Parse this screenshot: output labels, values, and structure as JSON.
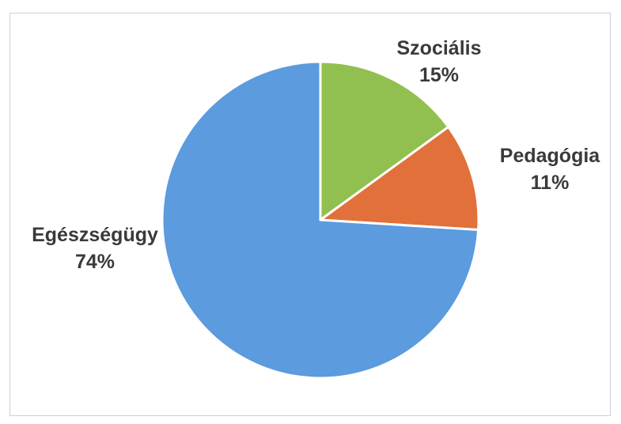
{
  "chart_data": {
    "type": "pie",
    "title": "",
    "slices": [
      {
        "label": "Szociális",
        "value": 15,
        "value_label": "15%",
        "color": "#92c050"
      },
      {
        "label": "Pedagógia",
        "value": 11,
        "value_label": "11%",
        "color": "#e2703a"
      },
      {
        "label": "Egészségügy",
        "value": 74,
        "value_label": "74%",
        "color": "#5b9bde"
      }
    ],
    "start_angle": "12 o'clock",
    "direction": "clockwise",
    "legend": "none",
    "data_labels": "outside"
  }
}
